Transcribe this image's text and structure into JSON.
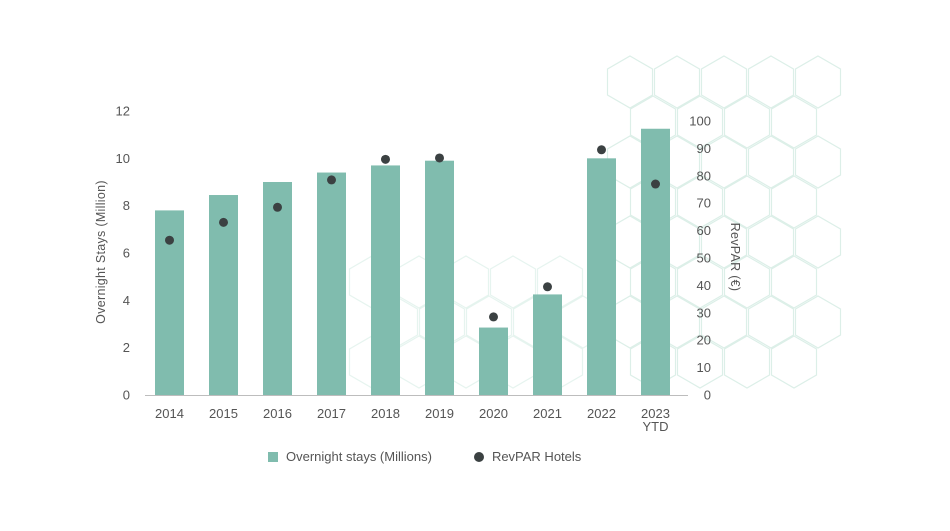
{
  "chart_data": {
    "type": "bar",
    "categories": [
      "2014",
      "2015",
      "2016",
      "2017",
      "2018",
      "2019",
      "2020",
      "2021",
      "2022",
      "2023\nYTD"
    ],
    "series": [
      {
        "name": "Overnight stays (Millions)",
        "type": "bar",
        "axis": "left",
        "values": [
          7.8,
          8.45,
          9.0,
          9.4,
          9.7,
          9.9,
          2.85,
          4.25,
          10.0,
          11.25
        ]
      },
      {
        "name": "RevPAR Hotels",
        "type": "scatter",
        "axis": "right",
        "values": [
          56.5,
          63,
          68.5,
          78.5,
          86,
          86.5,
          28.5,
          39.5,
          89.5,
          77
        ]
      }
    ],
    "ylabel": "Overnight Stays (Million)",
    "y2label": "RevPAR (€)",
    "ylim": [
      0,
      12
    ],
    "yticks": [
      0,
      2,
      4,
      6,
      8,
      10,
      12
    ],
    "y2lim": [
      0,
      100
    ],
    "y2ticks": [
      0,
      10,
      20,
      30,
      40,
      50,
      60,
      70,
      80,
      90,
      100
    ],
    "legend_position": "bottom",
    "colors": {
      "bar": "#80bcae",
      "dot": "#3b4142",
      "pattern": "#dcefe8"
    }
  },
  "legend": {
    "bar_label": "Overnight stays (Millions)",
    "dot_label": "RevPAR Hotels"
  }
}
